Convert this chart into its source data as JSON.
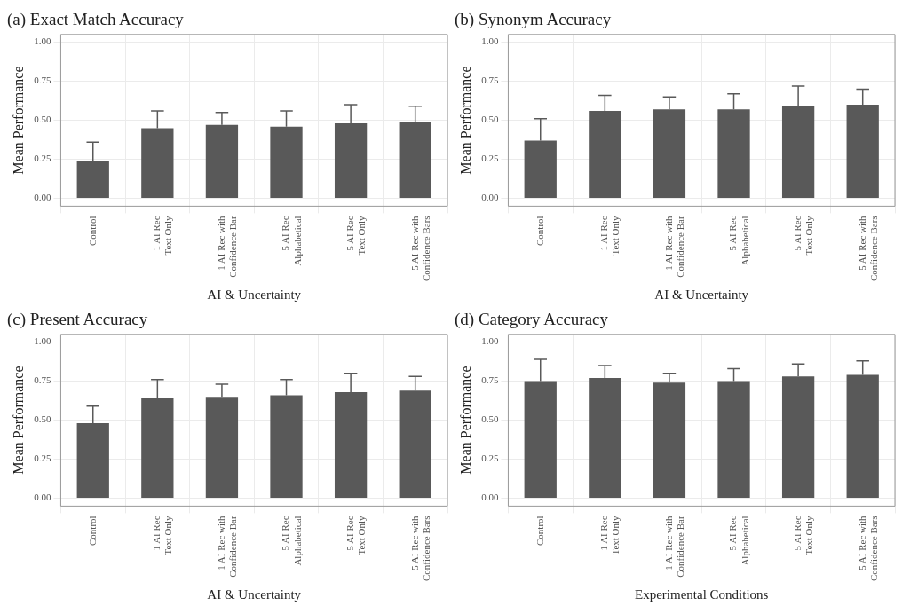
{
  "chart_data": [
    {
      "type": "bar",
      "title": "(a) Exact Match Accuracy",
      "xlabel": "AI & Uncertainty",
      "ylabel": "Mean Performance",
      "categories": [
        "Control",
        "1 AI Rec\nText Only",
        "1 AI Rec with\nConfidence Bar",
        "5 AI Rec\nAlphabetical",
        "5 AI Rec\nText Only",
        "5 AI Rec with\nConfidence Bars"
      ],
      "values": [
        0.24,
        0.45,
        0.47,
        0.46,
        0.48,
        0.49
      ],
      "errors": [
        [
          0.24,
          0.36
        ],
        [
          0.45,
          0.56
        ],
        [
          0.47,
          0.55
        ],
        [
          0.46,
          0.56
        ],
        [
          0.48,
          0.6
        ],
        [
          0.49,
          0.59
        ]
      ],
      "color": "#595959",
      "ylim": [
        -0.05,
        1.05
      ],
      "yticks": [
        {
          "value": 0,
          "label": "0.00"
        },
        {
          "value": 0.25,
          "label": "0.25"
        },
        {
          "value": 0.5,
          "label": "0.50"
        },
        {
          "value": 0.75,
          "label": "0.75"
        },
        {
          "value": 1,
          "label": "1.00"
        }
      ],
      "grid": true
    },
    {
      "type": "bar",
      "title": "(b) Synonym Accuracy",
      "xlabel": "AI & Uncertainty",
      "ylabel": "Mean Performance",
      "categories": [
        "Control",
        "1 AI Rec\nText Only",
        "1 AI Rec with\nConfidence Bar",
        "5 AI Rec\nAlphabetical",
        "5 AI Rec\nText Only",
        "5 AI Rec with\nConfidence Bars"
      ],
      "values": [
        0.37,
        0.56,
        0.57,
        0.57,
        0.59,
        0.6
      ],
      "errors": [
        [
          0.37,
          0.51
        ],
        [
          0.56,
          0.66
        ],
        [
          0.57,
          0.65
        ],
        [
          0.57,
          0.67
        ],
        [
          0.59,
          0.72
        ],
        [
          0.6,
          0.7
        ]
      ],
      "color": "#595959",
      "ylim": [
        -0.05,
        1.05
      ],
      "yticks": [
        {
          "value": 0,
          "label": "0.00"
        },
        {
          "value": 0.25,
          "label": "0.25"
        },
        {
          "value": 0.5,
          "label": "0.50"
        },
        {
          "value": 0.75,
          "label": "0.75"
        },
        {
          "value": 1,
          "label": "1.00"
        }
      ],
      "grid": true
    },
    {
      "type": "bar",
      "title": "(c) Present Accuracy",
      "xlabel": "AI & Uncertainty",
      "ylabel": "Mean Performance",
      "categories": [
        "Control",
        "1 AI Rec\nText Only",
        "1 AI Rec with\nConfidence Bar",
        "5 AI Rec\nAlphabetical",
        "5 AI Rec\nText Only",
        "5 AI Rec with\nConfidence Bars"
      ],
      "values": [
        0.48,
        0.64,
        0.65,
        0.66,
        0.68,
        0.69
      ],
      "errors": [
        [
          0.48,
          0.59
        ],
        [
          0.64,
          0.76
        ],
        [
          0.65,
          0.73
        ],
        [
          0.66,
          0.76
        ],
        [
          0.68,
          0.8
        ],
        [
          0.69,
          0.78
        ]
      ],
      "color": "#595959",
      "ylim": [
        -0.05,
        1.05
      ],
      "yticks": [
        {
          "value": 0,
          "label": "0.00"
        },
        {
          "value": 0.25,
          "label": "0.25"
        },
        {
          "value": 0.5,
          "label": "0.50"
        },
        {
          "value": 0.75,
          "label": "0.75"
        },
        {
          "value": 1,
          "label": "1.00"
        }
      ],
      "grid": true
    },
    {
      "type": "bar",
      "title": "(d) Category Accuracy",
      "xlabel": "Experimental Conditions",
      "ylabel": "Mean Performance",
      "categories": [
        "Control",
        "1 AI Rec\nText Only",
        "1 AI Rec with\nConfidence Bar",
        "5 AI Rec\nAlphabetical",
        "5 AI Rec\nText Only",
        "5 AI Rec with\nConfidence Bars"
      ],
      "values": [
        0.75,
        0.77,
        0.74,
        0.75,
        0.78,
        0.79
      ],
      "errors": [
        [
          0.75,
          0.89
        ],
        [
          0.77,
          0.85
        ],
        [
          0.74,
          0.8
        ],
        [
          0.75,
          0.83
        ],
        [
          0.78,
          0.86
        ],
        [
          0.79,
          0.88
        ]
      ],
      "color": "#595959",
      "ylim": [
        -0.05,
        1.05
      ],
      "yticks": [
        {
          "value": 0,
          "label": "0.00"
        },
        {
          "value": 0.25,
          "label": "0.25"
        },
        {
          "value": 0.5,
          "label": "0.50"
        },
        {
          "value": 0.75,
          "label": "0.75"
        },
        {
          "value": 1,
          "label": "1.00"
        }
      ],
      "grid": true
    }
  ]
}
